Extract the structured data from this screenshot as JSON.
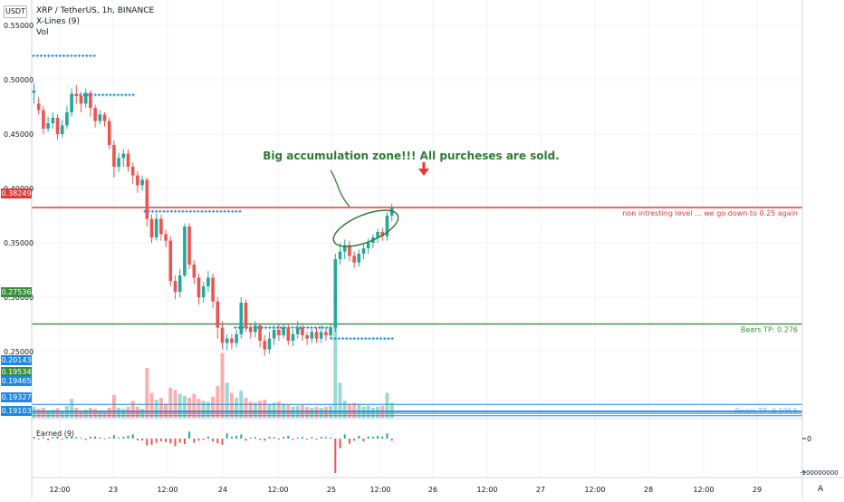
{
  "header": {
    "symbol": "XRP / TetherUS, 1h, BINANCE",
    "indicator1": "X-Lines (9)",
    "indicator2": "Vol",
    "currency_badge": "USDT"
  },
  "sub_pane": {
    "label": "Earned (9)",
    "tick_top": "0",
    "tick_bottom": "-100000000"
  },
  "auto_badge": "A",
  "colors": {
    "up": "#26a69a",
    "down": "#ef5350",
    "resistance": "#e53935",
    "support": "#388e3c",
    "blue": "#1e88e5",
    "annotation": "#2e7d32"
  },
  "chart_data": {
    "type": "candlestick",
    "symbol": "XRP / TetherUS",
    "interval": "1h",
    "exchange": "BINANCE",
    "y_ticks": [
      0.55,
      0.5,
      0.45,
      0.4,
      0.35,
      0.3,
      0.25
    ],
    "y_tick_labels": [
      "0.55000",
      "0.50000",
      "0.45000",
      "0.40000",
      "0.35000",
      "0.30000",
      "0.25000"
    ],
    "x_tick_labels": [
      "12:00",
      "23",
      "12:00",
      "24",
      "12:00",
      "25",
      "12:00",
      "26",
      "12:00",
      "27",
      "12:00",
      "28",
      "12:00",
      "29"
    ],
    "price_badges": [
      {
        "label": "0.38249",
        "color": "#e53935"
      },
      {
        "label": "0.27536",
        "color": "#388e3c"
      },
      {
        "label": "0.20143",
        "color": "#1e88e5"
      },
      {
        "label": "0.19534",
        "color": "#388e3c"
      },
      {
        "label": "0.19465",
        "color": "#1e88e5"
      },
      {
        "label": "0.19327",
        "color": "#1e88e5"
      },
      {
        "label": "0.19103",
        "color": "#1e88e5"
      }
    ],
    "horizontal_lines": [
      {
        "price": 0.38249,
        "color": "#e53935",
        "label": "non intresting level ... we go down to 0.25 again"
      },
      {
        "price": 0.27536,
        "color": "#388e3c",
        "label": "Bears TP: 0.276"
      }
    ],
    "blue_levels": [
      0.20143,
      0.19534,
      0.19465,
      0.19327,
      0.19103
    ],
    "blue_level_label": "Bears TP: 0.1953",
    "annotation": "Big accumulation zone!!! All purcheses are sold.",
    "candles": [
      [
        0.488,
        0.49,
        0.478,
        0.497
      ],
      [
        0.478,
        0.472,
        0.468,
        0.484
      ],
      [
        0.472,
        0.455,
        0.45,
        0.476
      ],
      [
        0.455,
        0.46,
        0.452,
        0.466
      ],
      [
        0.46,
        0.465,
        0.455,
        0.47
      ],
      [
        0.465,
        0.45,
        0.445,
        0.468
      ],
      [
        0.45,
        0.458,
        0.447,
        0.463
      ],
      [
        0.458,
        0.47,
        0.455,
        0.476
      ],
      [
        0.47,
        0.487,
        0.466,
        0.492
      ],
      [
        0.487,
        0.485,
        0.478,
        0.495
      ],
      [
        0.485,
        0.478,
        0.47,
        0.489
      ],
      [
        0.478,
        0.488,
        0.474,
        0.492
      ],
      [
        0.488,
        0.474,
        0.466,
        0.49
      ],
      [
        0.474,
        0.462,
        0.456,
        0.477
      ],
      [
        0.462,
        0.468,
        0.459,
        0.472
      ],
      [
        0.468,
        0.462,
        0.457,
        0.47
      ],
      [
        0.462,
        0.44,
        0.436,
        0.465
      ],
      [
        0.44,
        0.42,
        0.41,
        0.444
      ],
      [
        0.42,
        0.428,
        0.415,
        0.433
      ],
      [
        0.428,
        0.432,
        0.42,
        0.436
      ],
      [
        0.432,
        0.42,
        0.415,
        0.436
      ],
      [
        0.42,
        0.412,
        0.404,
        0.424
      ],
      [
        0.412,
        0.403,
        0.396,
        0.416
      ],
      [
        0.403,
        0.408,
        0.398,
        0.412
      ],
      [
        0.408,
        0.372,
        0.365,
        0.41
      ],
      [
        0.372,
        0.355,
        0.35,
        0.376
      ],
      [
        0.355,
        0.372,
        0.352,
        0.377
      ],
      [
        0.372,
        0.358,
        0.352,
        0.376
      ],
      [
        0.358,
        0.352,
        0.346,
        0.362
      ],
      [
        0.352,
        0.315,
        0.31,
        0.356
      ],
      [
        0.315,
        0.305,
        0.298,
        0.32
      ],
      [
        0.305,
        0.32,
        0.3,
        0.326
      ],
      [
        0.32,
        0.365,
        0.318,
        0.368
      ],
      [
        0.365,
        0.33,
        0.326,
        0.368
      ],
      [
        0.33,
        0.318,
        0.312,
        0.334
      ],
      [
        0.318,
        0.3,
        0.293,
        0.322
      ],
      [
        0.3,
        0.31,
        0.295,
        0.314
      ],
      [
        0.31,
        0.318,
        0.305,
        0.324
      ],
      [
        0.318,
        0.296,
        0.29,
        0.322
      ],
      [
        0.296,
        0.272,
        0.262,
        0.3
      ],
      [
        0.272,
        0.258,
        0.252,
        0.278
      ],
      [
        0.258,
        0.262,
        0.251,
        0.266
      ],
      [
        0.262,
        0.258,
        0.252,
        0.266
      ],
      [
        0.258,
        0.266,
        0.254,
        0.27
      ],
      [
        0.266,
        0.295,
        0.262,
        0.3
      ],
      [
        0.295,
        0.272,
        0.268,
        0.298
      ],
      [
        0.272,
        0.268,
        0.262,
        0.276
      ],
      [
        0.268,
        0.274,
        0.263,
        0.278
      ],
      [
        0.274,
        0.26,
        0.254,
        0.276
      ],
      [
        0.26,
        0.252,
        0.246,
        0.265
      ],
      [
        0.252,
        0.262,
        0.248,
        0.268
      ],
      [
        0.262,
        0.27,
        0.256,
        0.274
      ],
      [
        0.27,
        0.265,
        0.26,
        0.275
      ],
      [
        0.265,
        0.272,
        0.262,
        0.276
      ],
      [
        0.272,
        0.26,
        0.256,
        0.275
      ],
      [
        0.26,
        0.266,
        0.255,
        0.27
      ],
      [
        0.266,
        0.272,
        0.262,
        0.278
      ],
      [
        0.272,
        0.265,
        0.26,
        0.276
      ],
      [
        0.265,
        0.262,
        0.256,
        0.268
      ],
      [
        0.262,
        0.268,
        0.258,
        0.272
      ],
      [
        0.268,
        0.262,
        0.258,
        0.272
      ],
      [
        0.262,
        0.268,
        0.258,
        0.274
      ],
      [
        0.268,
        0.265,
        0.26,
        0.272
      ],
      [
        0.265,
        0.272,
        0.262,
        0.276
      ],
      [
        0.272,
        0.335,
        0.268,
        0.34
      ],
      [
        0.335,
        0.342,
        0.33,
        0.35
      ],
      [
        0.342,
        0.348,
        0.335,
        0.353
      ],
      [
        0.348,
        0.338,
        0.333,
        0.352
      ],
      [
        0.338,
        0.332,
        0.327,
        0.342
      ],
      [
        0.332,
        0.34,
        0.328,
        0.344
      ],
      [
        0.34,
        0.345,
        0.335,
        0.349
      ],
      [
        0.345,
        0.35,
        0.34,
        0.354
      ],
      [
        0.35,
        0.355,
        0.345,
        0.358
      ],
      [
        0.355,
        0.36,
        0.35,
        0.363
      ],
      [
        0.36,
        0.356,
        0.352,
        0.364
      ],
      [
        0.356,
        0.375,
        0.352,
        0.378
      ],
      [
        0.375,
        0.382,
        0.37,
        0.386
      ]
    ],
    "volumes": [
      0.22,
      0.18,
      0.2,
      0.15,
      0.16,
      0.19,
      0.14,
      0.24,
      0.38,
      0.2,
      0.14,
      0.16,
      0.2,
      0.18,
      0.12,
      0.14,
      0.2,
      0.46,
      0.2,
      0.18,
      0.22,
      0.34,
      0.22,
      0.18,
      1.0,
      0.5,
      0.36,
      0.4,
      0.28,
      0.6,
      0.56,
      0.48,
      0.44,
      0.4,
      0.48,
      0.38,
      0.34,
      0.32,
      0.42,
      0.64,
      1.3,
      0.7,
      0.5,
      0.4,
      0.54,
      0.4,
      0.32,
      0.3,
      0.34,
      0.36,
      0.26,
      0.3,
      0.32,
      0.28,
      0.26,
      0.22,
      0.24,
      0.26,
      0.22,
      0.2,
      0.22,
      0.2,
      0.22,
      0.24,
      1.9,
      0.7,
      0.34,
      0.28,
      0.3,
      0.26,
      0.22,
      0.24,
      0.2,
      0.22,
      0.24,
      0.5,
      0.3
    ],
    "earned": [
      0.05,
      -0.02,
      0.03,
      -0.05,
      0.04,
      0.06,
      -0.03,
      0.05,
      0.07,
      0.04,
      0.02,
      -0.04,
      0.05,
      0.06,
      0.03,
      -0.02,
      0.04,
      0.1,
      0.03,
      0.05,
      0.08,
      0.12,
      -0.05,
      -0.06,
      -0.2,
      -0.18,
      -0.12,
      -0.08,
      -0.1,
      -0.14,
      -0.22,
      -0.12,
      -0.16,
      0.2,
      -0.12,
      -0.06,
      -0.04,
      0.06,
      -0.08,
      -0.14,
      -0.18,
      0.15,
      0.05,
      0.08,
      0.12,
      -0.06,
      0.03,
      0.04,
      -0.04,
      -0.06,
      0.05,
      0.04,
      -0.03,
      0.05,
      0.08,
      -0.04,
      0.03,
      0.05,
      -0.02,
      0.04,
      -0.03,
      0.05,
      0.04,
      0.03,
      -1.0,
      -0.28,
      0.12,
      -0.15,
      -0.06,
      0.08,
      -0.08,
      0.06,
      0.05,
      0.08,
      0.06,
      0.15,
      -0.06
    ]
  }
}
